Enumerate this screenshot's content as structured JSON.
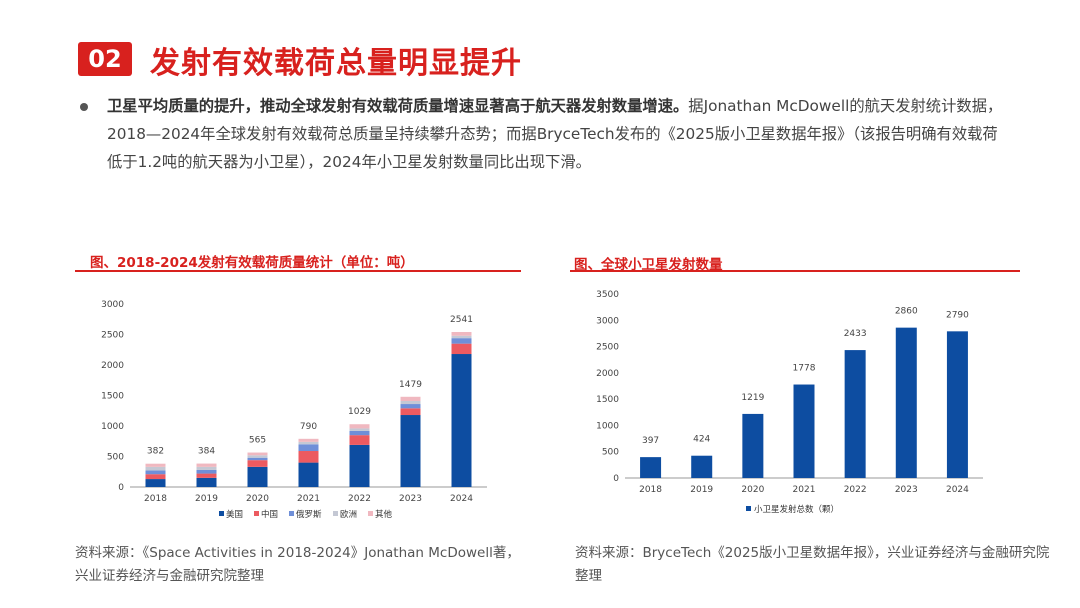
{
  "header": {
    "badge": "02",
    "title": "发射有效载荷总量明显提升"
  },
  "paragraph": {
    "lead": "卫星平均质量的提升，推动全球发射有效载荷质量增速显著高于航天器发射数量增速。",
    "rest": "据Jonathan McDowell的航天发射统计数据，2018—2024年全球发射有效载荷总质量呈持续攀升态势；而据BryceTech发布的《2025版小卫星数据年报》（该报告明确有效载荷低于1.2吨的航天器为小卫星），2024年小卫星发射数量同比出现下滑。"
  },
  "left_chart": {
    "caption": "图、2018-2024发射有效载荷质量统计（单位：吨）",
    "source": "资料来源：《Space Activities in 2018-2024》Jonathan McDowell著，兴业证券经济与金融研究院整理"
  },
  "right_chart": {
    "caption": "图、全球小卫星发射数量",
    "source": "资料来源：BryceTech《2025版小卫星数据年报》，兴业证券经济与金融研究院整理"
  },
  "colors": {
    "accent": "#d8211e",
    "us": "#0d4da1",
    "china": "#ec5a60",
    "russia": "#6f8fd8",
    "europe": "#c4c8d4",
    "other": "#f0b8c0",
    "smallsat": "#0d4da1"
  },
  "chart_data": [
    {
      "type": "bar",
      "stacked": true,
      "title": "图、2018-2024发射有效载荷质量统计（单位：吨）",
      "categories": [
        "2018",
        "2019",
        "2020",
        "2021",
        "2022",
        "2023",
        "2024"
      ],
      "series": [
        {
          "name": "美国",
          "values": [
            130,
            150,
            330,
            400,
            690,
            1180,
            2180
          ]
        },
        {
          "name": "中国",
          "values": [
            80,
            70,
            110,
            190,
            160,
            110,
            170
          ]
        },
        {
          "name": "俄罗斯",
          "values": [
            60,
            60,
            40,
            110,
            70,
            70,
            90
          ]
        },
        {
          "name": "欧洲",
          "values": [
            60,
            50,
            40,
            40,
            40,
            50,
            40
          ]
        },
        {
          "name": "其他",
          "values": [
            52,
            54,
            45,
            50,
            69,
            69,
            61
          ]
        }
      ],
      "totals": [
        382,
        384,
        565,
        790,
        1029,
        1479,
        2541
      ],
      "ylim": [
        0,
        3000
      ],
      "yticks": [
        0,
        500,
        1000,
        1500,
        2000,
        2500,
        3000
      ],
      "legend": "bottom"
    },
    {
      "type": "bar",
      "title": "图、全球小卫星发射数量",
      "categories": [
        "2018",
        "2019",
        "2020",
        "2021",
        "2022",
        "2023",
        "2024"
      ],
      "series": [
        {
          "name": "小卫星发射总数（颗）",
          "values": [
            397,
            424,
            1219,
            1778,
            2433,
            2860,
            2790
          ]
        }
      ],
      "ylim": [
        0,
        3500
      ],
      "yticks": [
        0,
        500,
        1000,
        1500,
        2000,
        2500,
        3000,
        3500
      ],
      "legend": "bottom"
    }
  ]
}
